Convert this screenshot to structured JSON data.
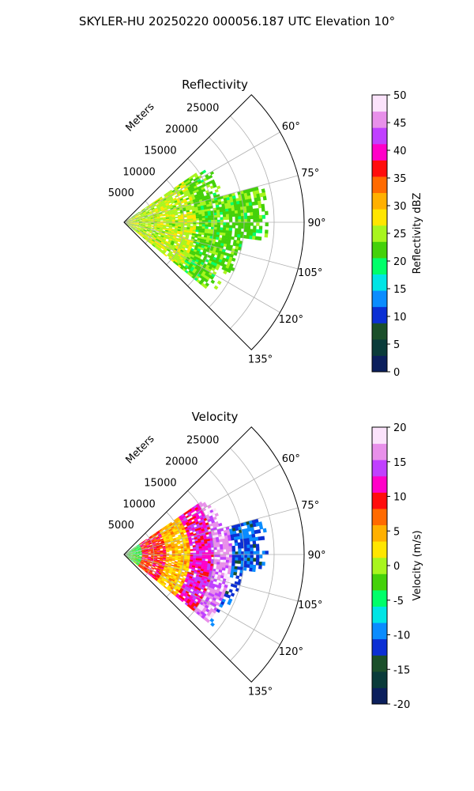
{
  "figure_title": "SKYLER-HU  20250220  000056.187 UTC Elevation 10°",
  "chart_data": [
    {
      "type": "heatmap",
      "projection": "polar-sector",
      "title": "Reflectivity",
      "radial_label": "Meters",
      "azimuth_range_deg": [
        45,
        135
      ],
      "azimuth_ticks": [
        "60°",
        "75°",
        "90°",
        "105°",
        "120°",
        "135°"
      ],
      "azimuth_tick_values": [
        60,
        75,
        90,
        105,
        120,
        135
      ],
      "range_ticks": [
        "5000",
        "10000",
        "15000",
        "20000",
        "25000"
      ],
      "range_tick_values": [
        5000,
        10000,
        15000,
        20000,
        25000
      ],
      "range_max": 30000,
      "grid": true,
      "colorbar": {
        "label": "Reflectivity dBZ",
        "vmin": 0,
        "vmax": 50,
        "ticks": [
          "0",
          "5",
          "10",
          "15",
          "20",
          "25",
          "30",
          "35",
          "40",
          "45",
          "50"
        ],
        "tick_values": [
          0,
          5,
          10,
          15,
          20,
          25,
          30,
          35,
          40,
          45,
          50
        ]
      },
      "data_extent": [
        {
          "az_start": 55,
          "az_end": 75,
          "range_end": 17000
        },
        {
          "az_start": 75,
          "az_end": 97,
          "range_end": 24000
        },
        {
          "az_start": 97,
          "az_end": 115,
          "range_end": 20000
        },
        {
          "az_start": 115,
          "az_end": 128,
          "range_end": 19000
        }
      ],
      "dominant_values_dbz": [
        20,
        25
      ]
    },
    {
      "type": "heatmap",
      "projection": "polar-sector",
      "title": "Velocity",
      "radial_label": "Meters",
      "azimuth_range_deg": [
        45,
        135
      ],
      "azimuth_ticks": [
        "60°",
        "75°",
        "90°",
        "105°",
        "120°",
        "135°"
      ],
      "azimuth_tick_values": [
        60,
        75,
        90,
        105,
        120,
        135
      ],
      "range_ticks": [
        "5000",
        "10000",
        "15000",
        "20000",
        "25000"
      ],
      "range_tick_values": [
        5000,
        10000,
        15000,
        20000,
        25000
      ],
      "range_max": 30000,
      "grid": true,
      "colorbar": {
        "label": "Velocity (m/s)",
        "vmin": -20,
        "vmax": 20,
        "ticks": [
          "-20",
          "-15",
          "-10",
          "-5",
          "0",
          "5",
          "10",
          "15",
          "20"
        ],
        "tick_values": [
          -20,
          -15,
          -10,
          -5,
          0,
          5,
          10,
          15,
          20
        ]
      },
      "data_extent": [
        {
          "az_start": 55,
          "az_end": 75,
          "range_end": 17000
        },
        {
          "az_start": 75,
          "az_end": 97,
          "range_end": 24000
        },
        {
          "az_start": 97,
          "az_end": 115,
          "range_end": 20000
        },
        {
          "az_start": 115,
          "az_end": 128,
          "range_end": 19000
        }
      ],
      "velocity_pattern": [
        {
          "range": [
            0,
            3000
          ],
          "value": -3
        },
        {
          "range": [
            3000,
            7000
          ],
          "value": 9
        },
        {
          "range": [
            7000,
            11000
          ],
          "value": 4
        },
        {
          "range": [
            11000,
            15000
          ],
          "value": 12
        },
        {
          "range": [
            15000,
            18000
          ],
          "value": 16
        },
        {
          "range": [
            18000,
            24000
          ],
          "value": -11
        }
      ]
    }
  ],
  "colormap_stops": [
    "#0b1f5c",
    "#0a3b3a",
    "#1b4f2a",
    "#0b2fd4",
    "#0a8cff",
    "#00e5e5",
    "#00ff6a",
    "#44d10a",
    "#a8f51e",
    "#ffe600",
    "#ffb000",
    "#ff6a00",
    "#ff0d0d",
    "#ff00c8",
    "#c040ff",
    "#e890ea",
    "#fbe3fb"
  ]
}
